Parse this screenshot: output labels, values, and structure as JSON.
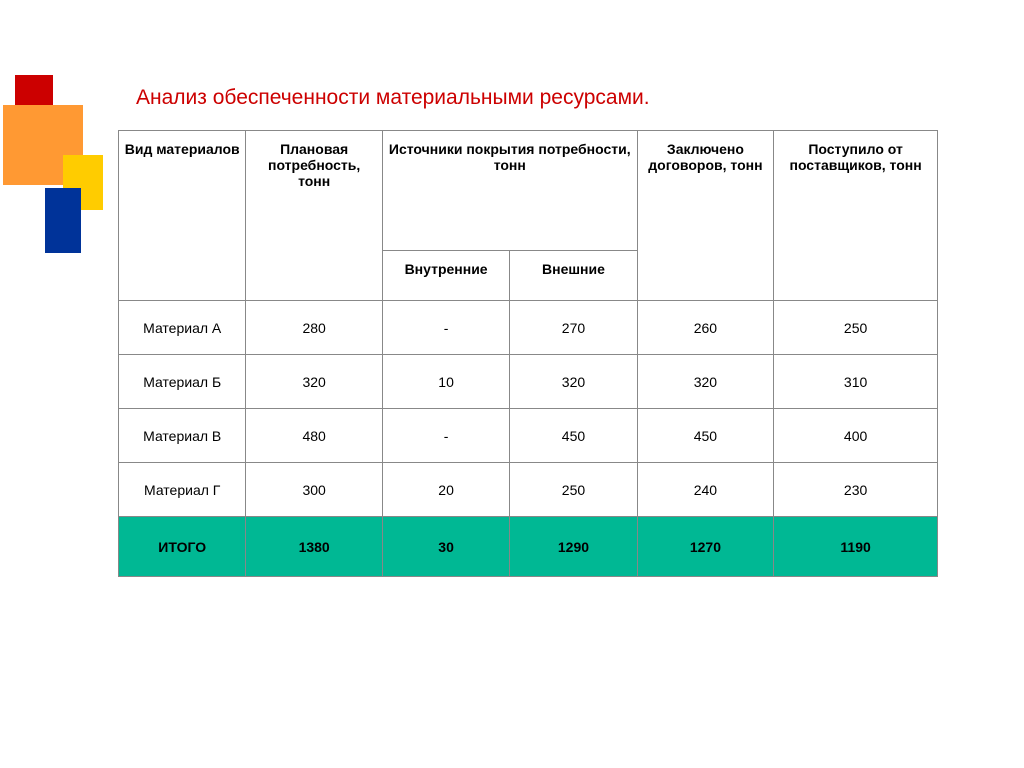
{
  "title": {
    "text": "Анализ обеспеченности материальными ресурсами.",
    "color": "#cc0000"
  },
  "decoration": {
    "red": "#cc0000",
    "orange": "#ff9933",
    "yellow": "#ffcc00",
    "blue": "#003399"
  },
  "table": {
    "headers": {
      "material": "Вид материалов",
      "planned": "Плановая потребность, тонн",
      "sources": "Источники покрытия потребности, тонн",
      "internal": "Внутренние",
      "external": "Внешние",
      "contracts": "Заключено договоров, тонн",
      "suppliers": "Поступило от поставщиков, тонн"
    },
    "rows": [
      {
        "material": "Материал А",
        "planned": "280",
        "internal": "-",
        "external": "270",
        "contracts": "260",
        "suppliers": "250"
      },
      {
        "material": "Материал Б",
        "planned": "320",
        "internal": "10",
        "external": "320",
        "contracts": "320",
        "suppliers": "310"
      },
      {
        "material": "Материал В",
        "planned": "480",
        "internal": "-",
        "external": "450",
        "contracts": "450",
        "suppliers": "400"
      },
      {
        "material": "Материал Г",
        "planned": "300",
        "internal": "20",
        "external": "250",
        "contracts": "240",
        "suppliers": "230"
      }
    ],
    "total": {
      "label": "ИТОГО",
      "planned": "1380",
      "internal": "30",
      "external": "1290",
      "contracts": "1270",
      "suppliers": "1190",
      "bg_color": "#00b894"
    },
    "border_color": "#888888",
    "bg_color": "#ffffff",
    "font_size": 14,
    "header_font_weight": "bold"
  }
}
